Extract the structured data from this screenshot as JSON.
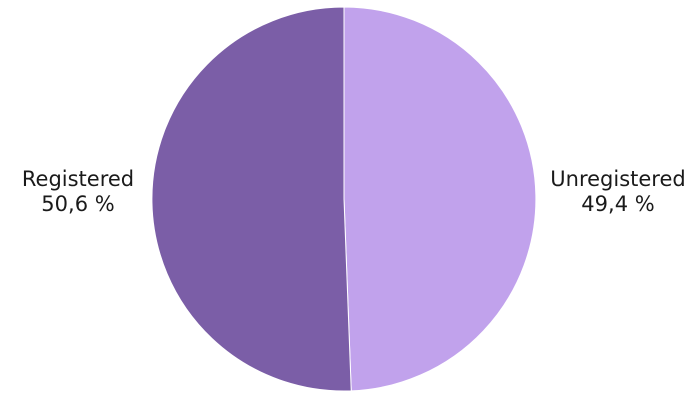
{
  "chart_data": {
    "type": "pie",
    "slices": [
      {
        "label": "Registered",
        "value": 50.6,
        "value_label": "50,6 %",
        "color": "#7b5ea7"
      },
      {
        "label": "Unregistered",
        "value": 49.4,
        "value_label": "49,4 %",
        "color": "#c1a2ec"
      }
    ],
    "start_angle": "top",
    "direction": "clockwise-from-right",
    "legend": "none"
  }
}
